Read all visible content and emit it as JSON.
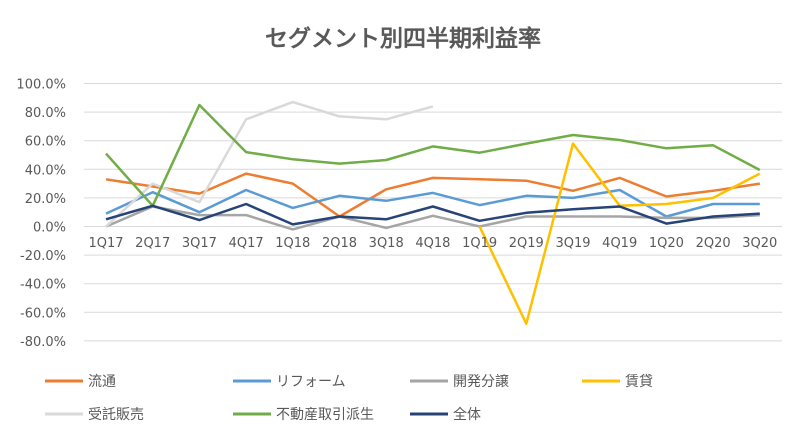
{
  "chart_data": {
    "type": "line",
    "title": "セグメント別四半期利益率",
    "xlabel": "",
    "ylabel": "",
    "categories": [
      "1Q17",
      "2Q17",
      "3Q17",
      "4Q17",
      "1Q18",
      "2Q18",
      "3Q18",
      "4Q18",
      "1Q19",
      "2Q19",
      "3Q19",
      "4Q19",
      "1Q20",
      "2Q20",
      "3Q20"
    ],
    "ylim": [
      -80,
      100
    ],
    "yticks": [
      100,
      80,
      60,
      40,
      20,
      0,
      -20,
      -40,
      -60,
      -80
    ],
    "ytick_labels": [
      "100.0%",
      "80.0%",
      "60.0%",
      "40.0%",
      "20.0%",
      "0.0%",
      "-20.0%",
      "-40.0%",
      "-60.0%",
      "-80.0%"
    ],
    "grid": true,
    "legend_position": "bottom",
    "series": [
      {
        "name": "流通",
        "color": "#ED7D31",
        "values": [
          33,
          28,
          23,
          37,
          30,
          7,
          26,
          34,
          33,
          32,
          25,
          34,
          21,
          25,
          30
        ]
      },
      {
        "name": "リフォーム",
        "color": "#5B9BD5",
        "values": [
          9,
          24,
          10,
          25.5,
          13,
          21.5,
          18,
          23.5,
          15,
          21.5,
          20,
          25.5,
          7,
          15.7,
          15.7
        ]
      },
      {
        "name": "開発分譲",
        "color": "#A5A5A5",
        "values": [
          0,
          14,
          8,
          8,
          -2,
          7,
          -1,
          7.5,
          0,
          7,
          7,
          7,
          6,
          6,
          8
        ]
      },
      {
        "name": "賃貸",
        "color": "#FFC000",
        "values": [
          null,
          null,
          null,
          null,
          null,
          null,
          null,
          null,
          0,
          -68,
          58,
          14.5,
          15.7,
          20,
          37
        ]
      },
      {
        "name": "受託販売",
        "color": "#D9D9D9",
        "values": [
          0,
          30,
          17,
          75,
          87,
          77,
          75,
          84,
          null,
          null,
          null,
          null,
          null,
          null,
          null
        ]
      },
      {
        "name": "不動産取引派生",
        "color": "#70AD47",
        "values": [
          51,
          14.5,
          85,
          52,
          47,
          44,
          46.5,
          56,
          51.6,
          58,
          64,
          60.5,
          54.7,
          56.8,
          39.5
        ]
      },
      {
        "name": "全体",
        "color": "#264478",
        "values": [
          5,
          14.5,
          4.5,
          15.7,
          1.5,
          7,
          5,
          14,
          4,
          9.6,
          12,
          14,
          2,
          7,
          9
        ]
      }
    ]
  }
}
